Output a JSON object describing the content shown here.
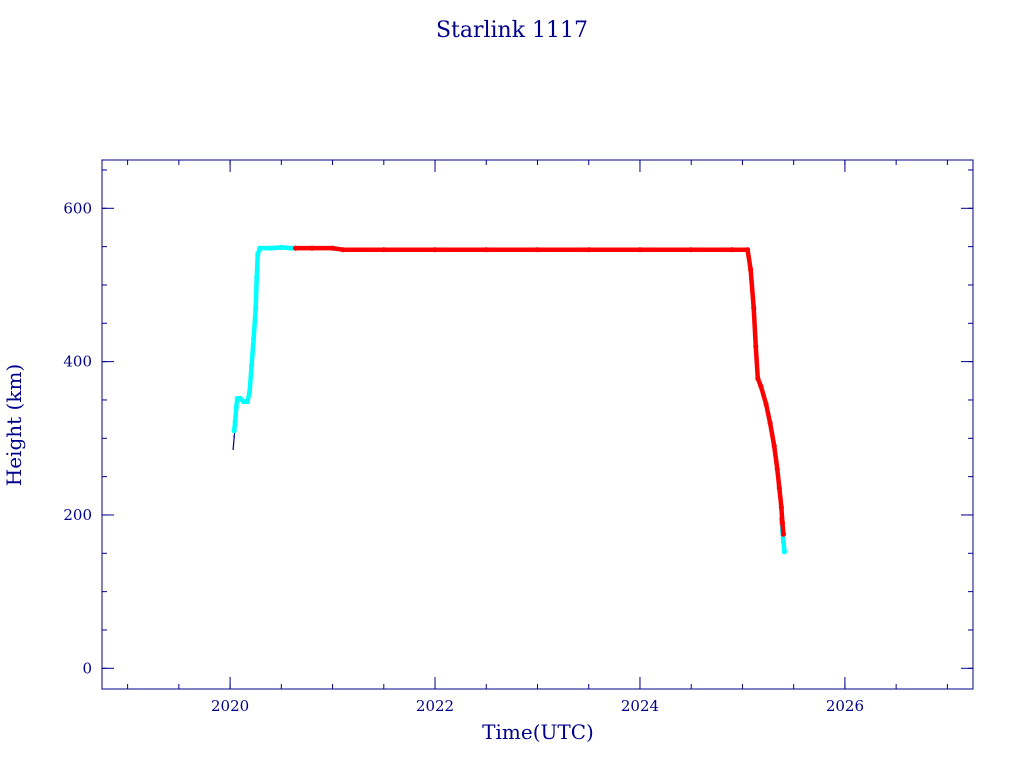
{
  "chart_data": {
    "type": "scatter",
    "title": "Starlink 1117",
    "xlabel": "Time(UTC)",
    "ylabel": "Height (km)",
    "xlim": [
      2018.75,
      2027.25
    ],
    "ylim": [
      -27,
      663
    ],
    "x_major_ticks": [
      2020,
      2022,
      2024,
      2026
    ],
    "x_tick_labels": [
      "2020",
      "2022",
      "2024",
      "2026"
    ],
    "x_minor_step": 0.5,
    "y_major_ticks": [
      0,
      200,
      400,
      600
    ],
    "y_tick_labels": [
      "0",
      "200",
      "400",
      "600"
    ],
    "y_minor_step": 50,
    "grid": false,
    "legend": "none",
    "axis_color": "#00008b",
    "series": [
      {
        "color": "#000080",
        "points": [
          [
            2020.03,
            286
          ],
          [
            2020.04,
            302
          ],
          [
            2020.05,
            315
          ]
        ]
      },
      {
        "color": "#00ffff",
        "points": [
          [
            2020.04,
            310
          ],
          [
            2020.05,
            322
          ],
          [
            2020.06,
            340
          ],
          [
            2020.07,
            352
          ],
          [
            2020.1,
            352
          ],
          [
            2020.13,
            348
          ],
          [
            2020.17,
            348
          ],
          [
            2020.19,
            360
          ],
          [
            2020.21,
            395
          ],
          [
            2020.23,
            430
          ],
          [
            2020.25,
            470
          ],
          [
            2020.26,
            510
          ],
          [
            2020.27,
            540
          ],
          [
            2020.29,
            548
          ],
          [
            2020.4,
            548
          ],
          [
            2020.5,
            549
          ],
          [
            2020.6,
            548
          ],
          [
            2020.64,
            548
          ],
          [
            2025.38,
            195
          ],
          [
            2025.39,
            180
          ],
          [
            2025.4,
            165
          ],
          [
            2025.41,
            152
          ]
        ]
      },
      {
        "color": "#ff0000",
        "points": [
          [
            2020.64,
            548
          ],
          [
            2020.8,
            548
          ],
          [
            2021.0,
            548
          ],
          [
            2021.1,
            546
          ],
          [
            2021.5,
            546
          ],
          [
            2022.0,
            546
          ],
          [
            2022.5,
            546
          ],
          [
            2023.0,
            546
          ],
          [
            2023.5,
            546
          ],
          [
            2024.0,
            546
          ],
          [
            2024.5,
            546
          ],
          [
            2024.9,
            546
          ],
          [
            2025.05,
            546
          ],
          [
            2025.08,
            520
          ],
          [
            2025.11,
            470
          ],
          [
            2025.13,
            420
          ],
          [
            2025.15,
            378
          ],
          [
            2025.18,
            368
          ],
          [
            2025.23,
            345
          ],
          [
            2025.27,
            320
          ],
          [
            2025.31,
            290
          ],
          [
            2025.34,
            260
          ],
          [
            2025.36,
            235
          ],
          [
            2025.38,
            210
          ],
          [
            2025.39,
            190
          ],
          [
            2025.4,
            175
          ]
        ]
      }
    ]
  }
}
